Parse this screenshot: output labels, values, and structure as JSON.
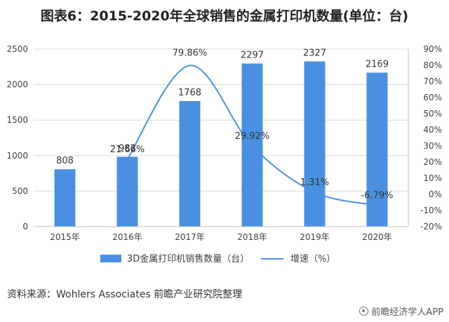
{
  "title": "图表6：2015-2020年全球销售的金属打印机数量(单位：台)",
  "source": "资料来源：Wohlers Associates 前瞻产业研究院整理",
  "brand": "前瞻经济学人APP",
  "colors": {
    "bar": "#4a90e2",
    "line": "#4a90e2",
    "grid": "#d9d9d9",
    "axis": "#bfbfbf",
    "text": "#404040"
  },
  "chart_data": {
    "type": "bar",
    "categories": [
      "2015年",
      "2016年",
      "2017年",
      "2018年",
      "2019年",
      "2020年"
    ],
    "series": [
      {
        "name": "3D金属打印机销售数量（台）",
        "type": "bar",
        "axis": "left",
        "values": [
          808,
          983,
          1768,
          2297,
          2327,
          2169
        ],
        "labels": [
          "808",
          "983",
          "1768",
          "2297",
          "2327",
          "2169"
        ]
      },
      {
        "name": "增速（%）",
        "type": "line",
        "axis": "right",
        "smooth": true,
        "values": [
          null,
          21.66,
          79.86,
          29.92,
          1.31,
          -6.79
        ],
        "labels": [
          "",
          "21.66%",
          "79.86%",
          "29.92%",
          "1.31%",
          "-6.79%"
        ]
      }
    ],
    "y_left": {
      "min": 0,
      "max": 2500,
      "ticks": [
        "0",
        "500",
        "1000",
        "1500",
        "2000",
        "2500"
      ]
    },
    "y_right": {
      "min": -20,
      "max": 90,
      "ticks": [
        "-20%",
        "-10%",
        "0%",
        "10%",
        "20%",
        "30%",
        "40%",
        "50%",
        "60%",
        "70%",
        "80%",
        "90%"
      ]
    },
    "grid": true,
    "legend_position": "bottom"
  }
}
